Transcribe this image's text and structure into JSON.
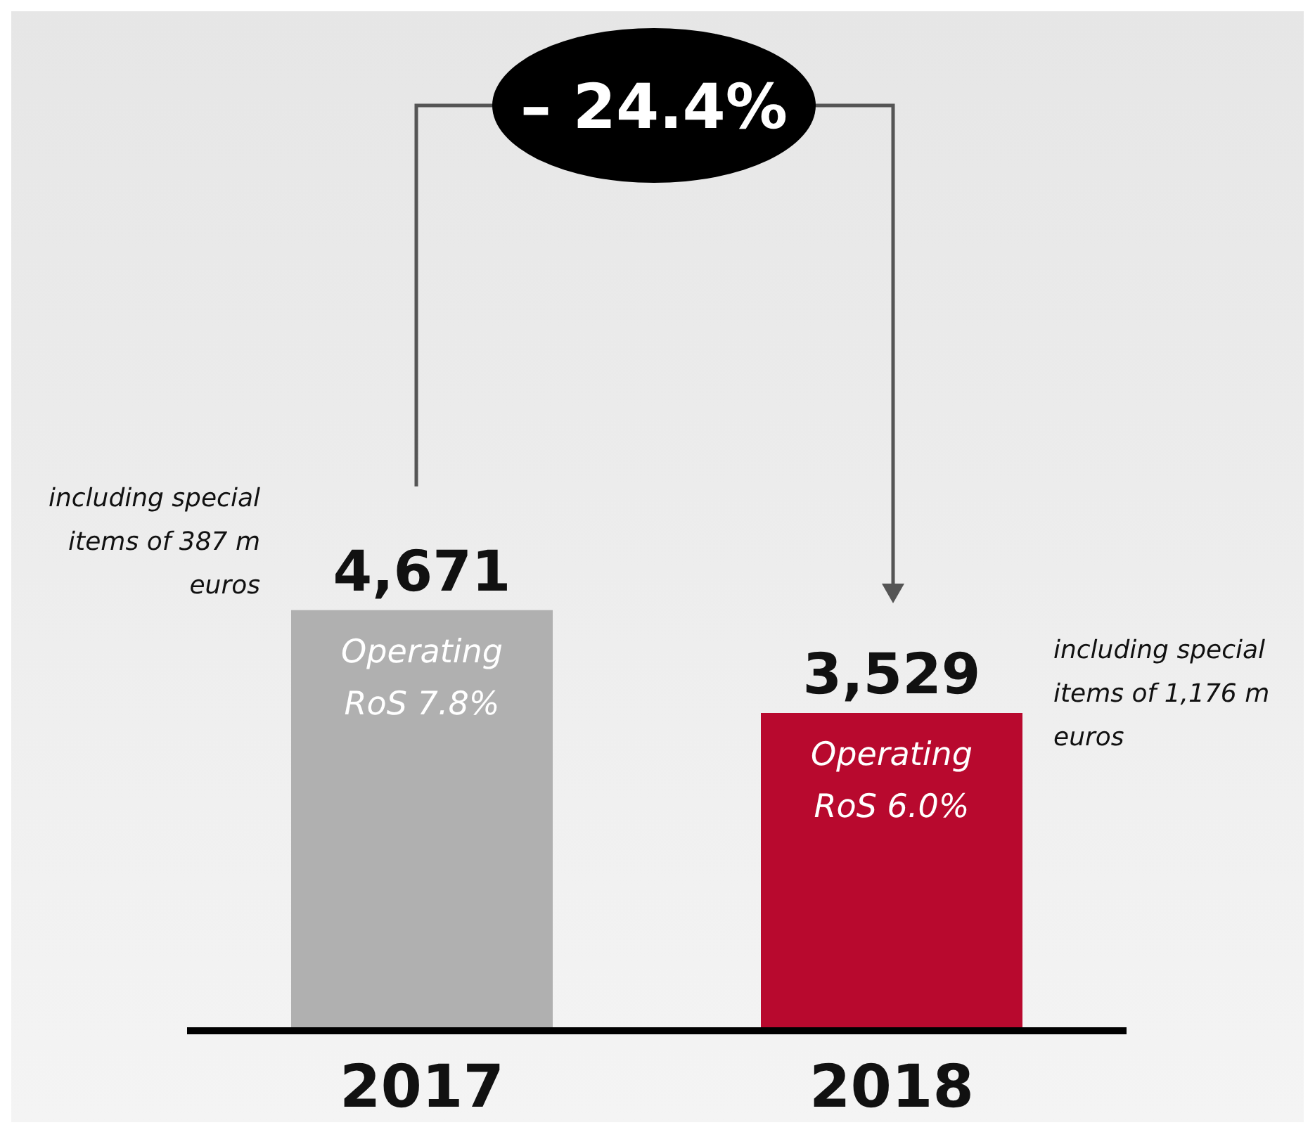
{
  "chart_data": {
    "type": "bar",
    "categories": [
      "2017",
      "2018"
    ],
    "values": [
      4671,
      3529
    ],
    "value_labels": [
      "4,671",
      "3,529"
    ],
    "colors": [
      "#b0b0b0",
      "#b8092e"
    ],
    "annotations": [
      "including special items of 387 m euros",
      "Operating RoS 7.8%",
      "Operating RoS 6.0%",
      "including special items of 1,176 m euros",
      "– 24.4%"
    ]
  }
}
